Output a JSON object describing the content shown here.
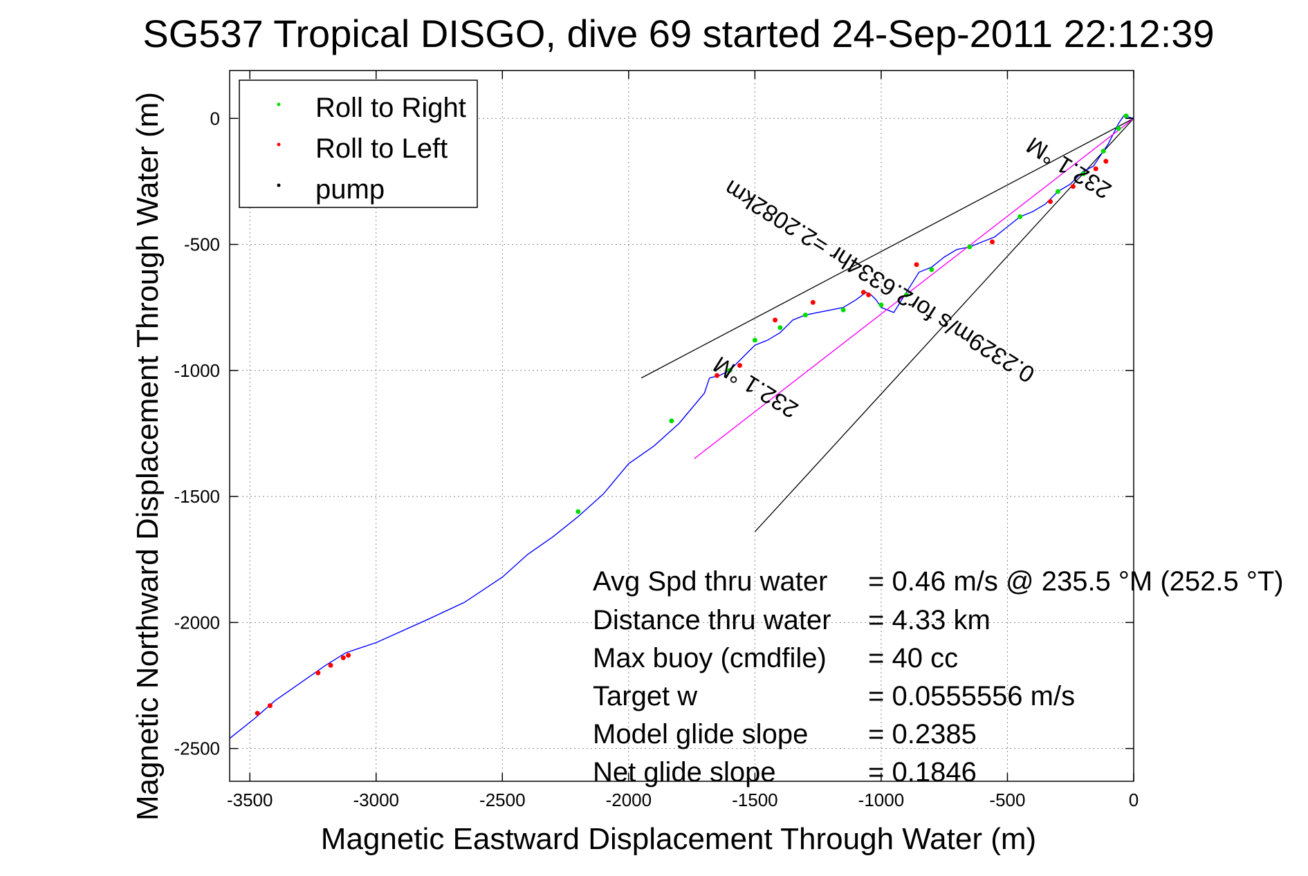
{
  "chart_data": {
    "type": "line",
    "title": "SG537 Tropical DISGO, dive 69 started 24-Sep-2011 22:12:39",
    "xlabel": "Magnetic Eastward Displacement Through Water (m)",
    "ylabel": "Magnetic Northward Displacement Through Water (m)",
    "xlim": [
      -3580,
      0
    ],
    "ylim": [
      -2630,
      190
    ],
    "x_ticks": [
      -3500,
      -3000,
      -2500,
      -2000,
      -1500,
      -1000,
      -500,
      0
    ],
    "y_ticks": [
      0,
      -500,
      -1000,
      -1500,
      -2000,
      -2500
    ],
    "x_tick_labels": [
      "-3500",
      "-3000",
      "-2500",
      "-2000",
      "-1500",
      "-1000",
      "-500",
      "0"
    ],
    "y_tick_labels": [
      "0",
      "-500",
      "-1000",
      "-1500",
      "-2000",
      "-2500"
    ],
    "grid": true,
    "legend": {
      "placement": "top-left",
      "entries": [
        "Roll to Right",
        "Roll to Left",
        "pump"
      ]
    },
    "colors": {
      "track": "#0000ff",
      "roll_right": "#00dd00",
      "roll_left": "#ff0000",
      "pump": "#000000",
      "current": "#ff00ff",
      "guide": "#000000",
      "grid": "#888888"
    },
    "series": [
      {
        "name": "track",
        "x": [
          -3580,
          -3480,
          -3400,
          -3300,
          -3200,
          -3120,
          -3000,
          -2800,
          -2650,
          -2500,
          -2400,
          -2300,
          -2200,
          -2100,
          -2000,
          -1900,
          -1800,
          -1700,
          -1680
        ],
        "y": [
          -2460,
          -2380,
          -2310,
          -2240,
          -2170,
          -2120,
          -2080,
          -1990,
          -1920,
          -1820,
          -1730,
          -1660,
          -1580,
          -1490,
          -1370,
          -1300,
          -1210,
          -1090,
          -1030
        ]
      },
      {
        "name": "track-wiggle",
        "x": [
          -1680,
          -1640,
          -1620,
          -1600,
          -1560,
          -1540,
          -1500,
          -1450,
          -1400,
          -1350,
          -1300,
          -1250,
          -1200,
          -1150,
          -1100,
          -1060,
          -1040,
          -1020,
          -1000,
          -950,
          -900,
          -850,
          -800,
          -750,
          -700,
          -650,
          -600,
          -550,
          -500,
          -450,
          -400,
          -350,
          -300,
          -250,
          -200,
          -160,
          -140,
          -120,
          -100,
          -80,
          -60,
          -40,
          -20,
          0
        ],
        "y": [
          -1030,
          -1020,
          -1010,
          -1000,
          -960,
          -940,
          -900,
          -880,
          -850,
          -800,
          -780,
          -770,
          -760,
          -750,
          -720,
          -690,
          -700,
          -720,
          -750,
          -770,
          -690,
          -610,
          -590,
          -550,
          -520,
          -510,
          -490,
          -470,
          -430,
          -390,
          -370,
          -340,
          -290,
          -260,
          -210,
          -190,
          -160,
          -130,
          -100,
          -60,
          -20,
          10,
          5,
          0
        ]
      },
      {
        "name": "current",
        "x": [
          -1740,
          0
        ],
        "y": [
          -1350,
          0
        ]
      }
    ],
    "guide_lines": [
      {
        "x": [
          -1950,
          0
        ],
        "y": [
          -1030,
          0
        ]
      },
      {
        "x": [
          -1500,
          0
        ],
        "y": [
          -1640,
          0
        ]
      }
    ],
    "roll_right_points": {
      "x": [
        -1830,
        -2200,
        -1600,
        -1500,
        -1400,
        -1300,
        -1150,
        -1000,
        -900,
        -800,
        -650,
        -450,
        -300,
        -200,
        -120,
        -60,
        -30
      ],
      "y": [
        -1200,
        -1560,
        -1000,
        -880,
        -830,
        -780,
        -760,
        -740,
        -700,
        -600,
        -510,
        -390,
        -290,
        -220,
        -130,
        -40,
        10
      ]
    },
    "roll_left_points": {
      "x": [
        -3470,
        -3420,
        -3230,
        -3180,
        -3130,
        -3110,
        -1650,
        -1560,
        -1420,
        -1270,
        -1070,
        -1050,
        -860,
        -560,
        -330,
        -240,
        -150,
        -110
      ],
      "y": [
        -2360,
        -2330,
        -2200,
        -2170,
        -2140,
        -2130,
        -1020,
        -980,
        -800,
        -730,
        -690,
        -700,
        -580,
        -490,
        -330,
        -270,
        -200,
        -170
      ]
    },
    "annotations": [
      {
        "text": "0.2329m/s for2.6334hr =2.2082km",
        "x": -990,
        "y": -620,
        "rotate": 212
      },
      {
        "text": "232.1 °M",
        "x": -240,
        "y": -170,
        "rotate": 212
      },
      {
        "text": "232.1 °M",
        "x": -1480,
        "y": -1040,
        "rotate": 212
      }
    ],
    "stats": [
      {
        "label": "Avg Spd thru water",
        "value": "=  0.46 m/s @ 235.5 °M (252.5 °T)"
      },
      {
        "label": "Distance thru water",
        "value": "=  4.33 km"
      },
      {
        "label": "Max buoy (cmdfile)",
        "value": "= 40 cc"
      },
      {
        "label": "Target w",
        "value": "= 0.0555556 m/s"
      },
      {
        "label": "Model glide slope",
        "value": "= 0.2385"
      },
      {
        "label": "Net glide slope",
        "value": "= 0.1846"
      }
    ]
  }
}
